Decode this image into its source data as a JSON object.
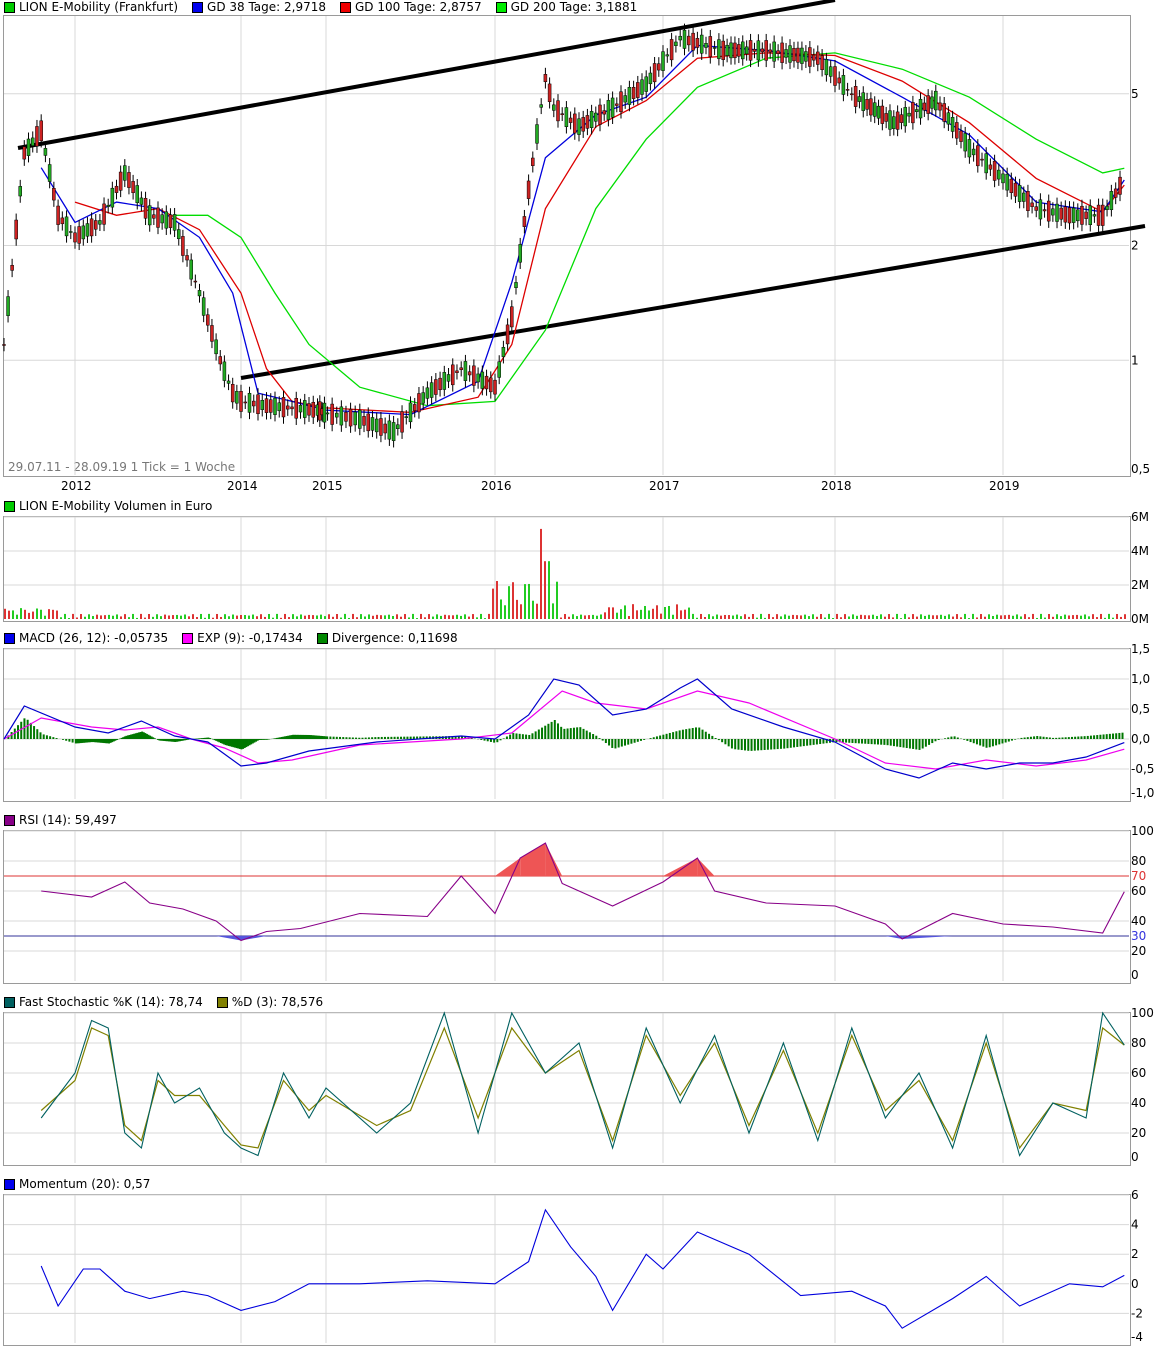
{
  "colors": {
    "gd38": "#0000dd",
    "gd100": "#dd0000",
    "gd200": "#00dd00",
    "macd": "#0000cc",
    "exp": "#ee00ee",
    "div": "#007700",
    "rsi": "#880088",
    "stochK": "#006060",
    "stochD": "#808000",
    "mom": "#0000dd",
    "trend": "#000000"
  },
  "legends": {
    "price": [
      {
        "label": "LION E-Mobility (Frankfurt)",
        "color": "#00cc00"
      },
      {
        "label": "GD 38 Tage: 2,9718",
        "color": "#0000ee"
      },
      {
        "label": "GD 100 Tage: 2,8757",
        "color": "#ee0000"
      },
      {
        "label": "GD 200 Tage: 3,1881",
        "color": "#00ee00"
      }
    ],
    "volume": [
      {
        "label": "LION E-Mobility Volumen in Euro",
        "color": "#00cc00"
      }
    ],
    "macd": [
      {
        "label": "MACD (26, 12): -0,05735",
        "color": "#0000ee"
      },
      {
        "label": "EXP (9): -0,17434",
        "color": "#ff00ff"
      },
      {
        "label": "Divergence: 0,11698",
        "color": "#008800"
      }
    ],
    "rsi": [
      {
        "label": "RSI (14): 59,497",
        "color": "#880088"
      }
    ],
    "stoch": [
      {
        "label": "Fast Stochastic %K (14): 78,74",
        "color": "#006060"
      },
      {
        "label": "%D (3): 78,576",
        "color": "#808000"
      }
    ],
    "mom": [
      {
        "label": "Momentum (20): 0,57",
        "color": "#0000ee"
      }
    ]
  },
  "range_text": "29.07.11 - 28.09.19   1 Tick = 1 Woche",
  "chart_data": [
    {
      "type": "line",
      "title": "LION E-Mobility (Frankfurt)",
      "scale": "log",
      "ylim": [
        0.5,
        8
      ],
      "x_ticks": [
        "2012",
        "2014",
        "2015",
        "2016",
        "2017",
        "2018",
        "2019"
      ],
      "y_ticks": [
        "5",
        "2",
        "1",
        "0,5"
      ],
      "series": [
        {
          "name": "LION E-Mobility (Frankfurt)",
          "x": [
            2011.58,
            2011.7,
            2011.8,
            2011.9,
            2012.0,
            2012.3,
            2012.6,
            2012.9,
            2013.2,
            2013.5,
            2013.75,
            2013.9,
            2014.0,
            2014.3,
            2014.6,
            2014.9,
            2015.2,
            2015.4,
            2015.6,
            2015.8,
            2016.0,
            2016.1,
            2016.2,
            2016.3,
            2016.35,
            2016.5,
            2016.7,
            2016.9,
            2017.1,
            2017.2,
            2017.35,
            2017.6,
            2017.9,
            2018.1,
            2018.35,
            2018.6,
            2018.8,
            2019.0,
            2019.2,
            2019.4,
            2019.6,
            2019.73
          ],
          "values": [
            1.1,
            3.5,
            4.0,
            2.4,
            2.1,
            2.3,
            3.1,
            2.4,
            2.3,
            1.5,
            1.0,
            0.82,
            0.78,
            0.76,
            0.75,
            0.74,
            0.7,
            0.65,
            0.82,
            0.95,
            0.85,
            1.3,
            2.8,
            5.5,
            4.6,
            4.1,
            4.6,
            5.3,
            7.0,
            6.8,
            6.5,
            6.5,
            6.2,
            5.0,
            4.2,
            4.8,
            3.6,
            3.0,
            2.5,
            2.4,
            2.4,
            3.0
          ]
        },
        {
          "name": "GD 38 Tage: 2,9718",
          "x": [
            2011.8,
            2012.0,
            2012.5,
            2013.0,
            2013.5,
            2013.9,
            2014.2,
            2014.6,
            2015.0,
            2015.5,
            2015.9,
            2016.1,
            2016.3,
            2016.6,
            2016.9,
            2017.2,
            2017.6,
            2018.0,
            2018.4,
            2018.8,
            2019.2,
            2019.6,
            2019.73
          ],
          "values": [
            3.2,
            2.3,
            2.6,
            2.5,
            2.1,
            1.5,
            0.82,
            0.78,
            0.74,
            0.72,
            0.88,
            1.6,
            3.4,
            4.4,
            4.9,
            6.7,
            6.5,
            6.1,
            4.9,
            3.9,
            2.6,
            2.45,
            2.97
          ]
        },
        {
          "name": "GD 100 Tage: 2,8757",
          "x": [
            2012.0,
            2012.5,
            2013.0,
            2013.5,
            2014.0,
            2014.3,
            2014.6,
            2015.0,
            2015.5,
            2015.9,
            2016.1,
            2016.3,
            2016.6,
            2016.9,
            2017.2,
            2017.6,
            2018.0,
            2018.4,
            2018.8,
            2019.2,
            2019.6,
            2019.73
          ],
          "values": [
            2.6,
            2.4,
            2.5,
            2.2,
            1.5,
            0.95,
            0.78,
            0.75,
            0.73,
            0.8,
            1.1,
            2.5,
            4.1,
            4.8,
            6.2,
            6.4,
            6.3,
            5.4,
            4.2,
            3.0,
            2.45,
            2.88
          ]
        },
        {
          "name": "GD 200 Tage: 3,1881",
          "x": [
            2013.2,
            2013.6,
            2014.0,
            2014.4,
            2014.8,
            2015.2,
            2015.6,
            2016.0,
            2016.3,
            2016.6,
            2016.9,
            2017.2,
            2017.6,
            2018.0,
            2018.4,
            2018.8,
            2019.2,
            2019.6,
            2019.73
          ],
          "values": [
            2.4,
            2.4,
            2.1,
            1.5,
            1.1,
            0.85,
            0.76,
            0.78,
            1.2,
            2.5,
            3.8,
            5.2,
            6.2,
            6.4,
            5.8,
            4.9,
            3.8,
            3.1,
            3.19
          ]
        }
      ]
    },
    {
      "type": "bar",
      "title": "LION E-Mobility Volumen in Euro",
      "y_ticks": [
        "6M",
        "4M",
        "2M",
        "0M"
      ],
      "ylim": [
        0,
        6
      ]
    },
    {
      "type": "line",
      "title": "MACD",
      "y_ticks": [
        "1,5",
        "1,0",
        "0,5",
        "0,0",
        "-0,5",
        "-1,0"
      ],
      "ylim": [
        -1,
        1.5
      ],
      "series": [
        {
          "name": "MACD (26, 12): -0,05735",
          "x": [
            2011.58,
            2011.7,
            2012.0,
            2012.4,
            2012.8,
            2013.2,
            2013.6,
            2014.0,
            2014.3,
            2014.8,
            2015.3,
            2015.8,
            2016.0,
            2016.2,
            2016.35,
            2016.5,
            2016.7,
            2016.9,
            2017.1,
            2017.2,
            2017.4,
            2017.7,
            2018.0,
            2018.3,
            2018.5,
            2018.7,
            2018.9,
            2019.1,
            2019.3,
            2019.5,
            2019.73
          ],
          "values": [
            0.0,
            0.55,
            0.2,
            0.1,
            0.3,
            0.05,
            -0.05,
            -0.45,
            -0.4,
            -0.2,
            -0.05,
            0.05,
            0.0,
            0.4,
            1.0,
            0.9,
            0.4,
            0.5,
            0.85,
            1.0,
            0.5,
            0.2,
            -0.05,
            -0.5,
            -0.65,
            -0.4,
            -0.5,
            -0.4,
            -0.4,
            -0.3,
            -0.06
          ]
        },
        {
          "name": "EXP (9): -0,17434",
          "x": [
            2011.58,
            2011.8,
            2012.2,
            2012.6,
            2013.0,
            2013.4,
            2013.8,
            2014.2,
            2014.6,
            2015.2,
            2015.8,
            2016.1,
            2016.4,
            2016.6,
            2016.9,
            2017.2,
            2017.5,
            2018.0,
            2018.3,
            2018.6,
            2018.9,
            2019.2,
            2019.5,
            2019.73
          ],
          "values": [
            0.0,
            0.35,
            0.2,
            0.15,
            0.2,
            0.0,
            -0.15,
            -0.4,
            -0.35,
            -0.1,
            0.0,
            0.1,
            0.8,
            0.6,
            0.5,
            0.8,
            0.6,
            0.0,
            -0.4,
            -0.5,
            -0.35,
            -0.45,
            -0.35,
            -0.17
          ]
        }
      ]
    },
    {
      "type": "line",
      "title": "RSI (14)",
      "y_ticks": [
        "100",
        "80",
        "70",
        "60",
        "40",
        "30",
        "20",
        "0"
      ],
      "ylim": [
        0,
        100
      ],
      "series": [
        {
          "name": "RSI (14): 59,497",
          "x": [
            2011.8,
            2012.2,
            2012.6,
            2012.9,
            2013.3,
            2013.7,
            2014.0,
            2014.3,
            2014.7,
            2015.2,
            2015.6,
            2015.8,
            2016.0,
            2016.15,
            2016.3,
            2016.4,
            2016.7,
            2017.0,
            2017.2,
            2017.3,
            2017.6,
            2018.0,
            2018.3,
            2018.4,
            2018.7,
            2019.0,
            2019.3,
            2019.6,
            2019.73
          ],
          "values": [
            60,
            56,
            66,
            52,
            48,
            40,
            27,
            33,
            35,
            45,
            43,
            70,
            45,
            82,
            92,
            65,
            50,
            66,
            82,
            60,
            52,
            50,
            38,
            28,
            45,
            38,
            36,
            32,
            59.5
          ]
        }
      ]
    },
    {
      "type": "line",
      "title": "Fast Stochastic",
      "y_ticks": [
        "100",
        "80",
        "60",
        "40",
        "20",
        "0"
      ],
      "ylim": [
        0,
        100
      ],
      "series": [
        {
          "name": "Fast Stochastic %K (14): 78,74",
          "x": [
            2011.8,
            2012.0,
            2012.2,
            2012.4,
            2012.6,
            2012.8,
            2013.0,
            2013.2,
            2013.5,
            2013.8,
            2014.0,
            2014.2,
            2014.5,
            2014.8,
            2015.0,
            2015.3,
            2015.5,
            2015.7,
            2015.9,
            2016.1,
            2016.3,
            2016.5,
            2016.7,
            2016.9,
            2017.1,
            2017.3,
            2017.5,
            2017.7,
            2017.9,
            2018.1,
            2018.3,
            2018.5,
            2018.7,
            2018.9,
            2019.1,
            2019.3,
            2019.5,
            2019.6,
            2019.73
          ],
          "values": [
            30,
            60,
            95,
            90,
            20,
            10,
            60,
            40,
            50,
            20,
            10,
            5,
            60,
            30,
            50,
            20,
            40,
            100,
            20,
            100,
            60,
            80,
            10,
            90,
            40,
            85,
            20,
            80,
            15,
            90,
            30,
            60,
            10,
            85,
            5,
            40,
            30,
            100,
            78.7
          ]
        },
        {
          "name": "%D (3): 78,576",
          "x": [
            2011.8,
            2012.0,
            2012.2,
            2012.4,
            2012.6,
            2012.8,
            2013.0,
            2013.2,
            2013.5,
            2013.8,
            2014.0,
            2014.2,
            2014.5,
            2014.8,
            2015.0,
            2015.3,
            2015.5,
            2015.7,
            2015.9,
            2016.1,
            2016.3,
            2016.5,
            2016.7,
            2016.9,
            2017.1,
            2017.3,
            2017.5,
            2017.7,
            2017.9,
            2018.1,
            2018.3,
            2018.5,
            2018.7,
            2018.9,
            2019.1,
            2019.3,
            2019.5,
            2019.6,
            2019.73
          ],
          "values": [
            35,
            55,
            90,
            85,
            25,
            15,
            55,
            45,
            45,
            25,
            12,
            10,
            55,
            35,
            45,
            25,
            35,
            90,
            30,
            90,
            60,
            75,
            15,
            85,
            45,
            80,
            25,
            75,
            20,
            85,
            35,
            55,
            15,
            80,
            10,
            40,
            35,
            90,
            78.6
          ]
        }
      ]
    },
    {
      "type": "line",
      "title": "Momentum (20)",
      "y_ticks": [
        "6",
        "4",
        "2",
        "0",
        "-2",
        "-4"
      ],
      "ylim": [
        -4,
        6
      ],
      "series": [
        {
          "name": "Momentum (20): 0,57",
          "x": [
            2011.8,
            2011.9,
            2012.1,
            2012.3,
            2012.6,
            2012.9,
            2013.3,
            2013.6,
            2014.0,
            2014.4,
            2014.8,
            2015.2,
            2015.6,
            2016.0,
            2016.2,
            2016.3,
            2016.45,
            2016.6,
            2016.7,
            2016.9,
            2017.0,
            2017.2,
            2017.5,
            2017.8,
            2018.1,
            2018.3,
            2018.4,
            2018.7,
            2018.9,
            2019.1,
            2019.4,
            2019.6,
            2019.73
          ],
          "values": [
            1.2,
            -1.5,
            1.0,
            1.0,
            -0.5,
            -1.0,
            -0.5,
            -0.8,
            -1.8,
            -1.2,
            0.0,
            0.0,
            0.2,
            0.0,
            1.5,
            5.0,
            2.5,
            0.5,
            -1.8,
            2.0,
            1.0,
            3.5,
            2.0,
            -0.8,
            -0.5,
            -1.5,
            -3.0,
            -1.0,
            0.5,
            -1.5,
            0.0,
            -0.2,
            0.57
          ]
        }
      ]
    }
  ]
}
